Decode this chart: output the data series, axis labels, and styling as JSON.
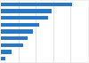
{
  "values": [
    8.2,
    5.8,
    5.4,
    4.4,
    3.7,
    3.1,
    2.5,
    1.2,
    0.5
  ],
  "bar_color": "#2878c8",
  "background_color": "#f0f0f0",
  "plot_bg_color": "#ffffff",
  "xlim": [
    0,
    10
  ],
  "gridline_color": "#cccccc",
  "bar_height": 0.55
}
